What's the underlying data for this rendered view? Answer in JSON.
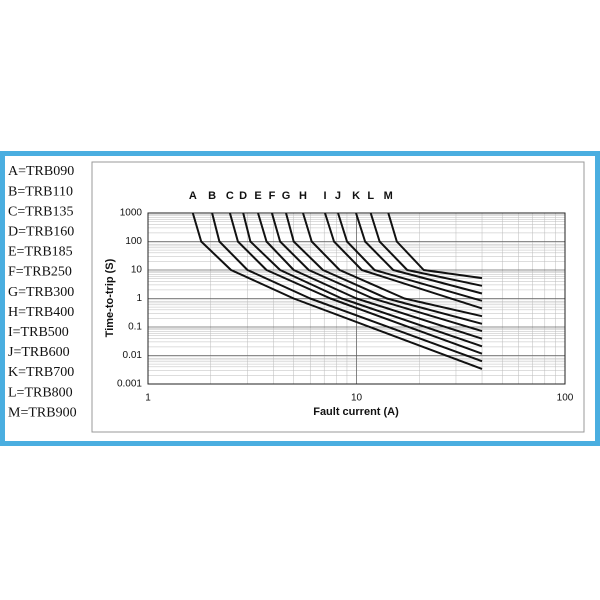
{
  "chart_data": {
    "type": "line",
    "y_label": "Time-to-trip (S)",
    "x_label": "Fault current (A)",
    "log_x": true,
    "log_y": true,
    "grid": true,
    "minor_grid": true,
    "color": "#111111",
    "xlim": [
      1,
      100
    ],
    "xticks": [
      1,
      10,
      100
    ],
    "ylim": [
      0.001,
      1000
    ],
    "yticks": [
      0.001,
      0.01,
      0.1,
      1,
      10,
      100,
      1000
    ],
    "legend": [
      "A=TRB090",
      "B=TRB110",
      "C=TRB135",
      "D=TRB160",
      "E=TRB185",
      "F=TRB250",
      "G=TRB300",
      "H=TRB400",
      "I=TRB500",
      "J=TRB600",
      "K=TRB700",
      "L=TRB800",
      "M=TRB900"
    ],
    "series": [
      {
        "name": "A",
        "x": [
          1.64,
          1.8,
          2.5,
          5,
          40
        ],
        "values": [
          1000,
          100,
          10,
          1,
          0.0034
        ]
      },
      {
        "name": "B",
        "x": [
          2.03,
          2.2,
          3,
          6,
          40
        ],
        "values": [
          1000,
          100,
          10,
          1,
          0.0063
        ]
      },
      {
        "name": "C",
        "x": [
          2.47,
          2.7,
          3.7,
          7.5,
          40
        ],
        "values": [
          1000,
          100,
          10,
          1,
          0.0116
        ]
      },
      {
        "name": "D",
        "x": [
          2.86,
          3.1,
          4.3,
          8.5,
          40
        ],
        "values": [
          1000,
          100,
          10,
          1,
          0.021
        ]
      },
      {
        "name": "E",
        "x": [
          3.37,
          3.7,
          5,
          10,
          40
        ],
        "values": [
          1000,
          100,
          10,
          1,
          0.039
        ]
      },
      {
        "name": "F",
        "x": [
          3.93,
          4.3,
          5.9,
          12,
          40
        ],
        "values": [
          1000,
          100,
          10,
          1,
          0.072
        ]
      },
      {
        "name": "G",
        "x": [
          4.59,
          5,
          6.9,
          14,
          40
        ],
        "values": [
          1000,
          100,
          10,
          1,
          0.13
        ]
      },
      {
        "name": "H",
        "x": [
          5.54,
          6.1,
          8.3,
          17,
          40
        ],
        "values": [
          1000,
          100,
          10,
          1,
          0.24
        ]
      },
      {
        "name": "I",
        "x": [
          7.06,
          7.8,
          10.6,
          40
        ],
        "values": [
          1000,
          100,
          10,
          0.45
        ]
      },
      {
        "name": "J",
        "x": [
          8.15,
          9,
          12.2,
          40
        ],
        "values": [
          1000,
          100,
          10,
          0.83
        ]
      },
      {
        "name": "K",
        "x": [
          9.95,
          11,
          15,
          40
        ],
        "values": [
          1000,
          100,
          10,
          1.5
        ]
      },
      {
        "name": "L",
        "x": [
          11.7,
          12.9,
          17.5,
          40
        ],
        "values": [
          1000,
          100,
          10,
          2.8
        ]
      },
      {
        "name": "M",
        "x": [
          14.2,
          15.6,
          21,
          40
        ],
        "values": [
          1000,
          100,
          10,
          5.2
        ]
      }
    ]
  }
}
